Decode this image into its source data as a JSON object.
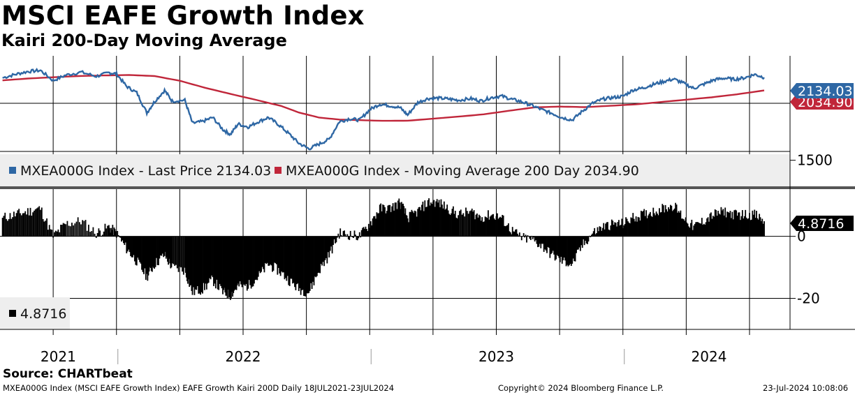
{
  "header": {
    "title": "MSCI EAFE Growth Index",
    "subtitle": "Kairi 200-Day Moving Average"
  },
  "chart_data": [
    {
      "type": "line",
      "panel": "upper",
      "x_unit": "year (decimal)",
      "series": [
        {
          "name": "MXEA000G Index - Last Price 2134.03",
          "color": "#2e67a4",
          "points": [
            [
              2021.55,
              2131
            ],
            [
              2021.6,
              2158
            ],
            [
              2021.65,
              2180
            ],
            [
              2021.7,
              2188
            ],
            [
              2021.75,
              2110
            ],
            [
              2021.8,
              2152
            ],
            [
              2021.86,
              2175
            ],
            [
              2021.92,
              2143
            ],
            [
              2021.97,
              2170
            ],
            [
              2022.0,
              2162
            ],
            [
              2022.04,
              2066
            ],
            [
              2022.08,
              2018
            ],
            [
              2022.12,
              1863
            ],
            [
              2022.15,
              1948
            ],
            [
              2022.19,
              2035
            ],
            [
              2022.22,
              1953
            ],
            [
              2022.27,
              1960
            ],
            [
              2022.3,
              1784
            ],
            [
              2022.34,
              1797
            ],
            [
              2022.38,
              1828
            ],
            [
              2022.42,
              1735
            ],
            [
              2022.45,
              1698
            ],
            [
              2022.48,
              1778
            ],
            [
              2022.52,
              1755
            ],
            [
              2022.56,
              1795
            ],
            [
              2022.6,
              1828
            ],
            [
              2022.64,
              1773
            ],
            [
              2022.68,
              1705
            ],
            [
              2022.72,
              1630
            ],
            [
              2022.76,
              1588
            ],
            [
              2022.8,
              1624
            ],
            [
              2022.84,
              1661
            ],
            [
              2022.88,
              1795
            ],
            [
              2022.92,
              1818
            ],
            [
              2022.96,
              1808
            ],
            [
              2023.0,
              1888
            ],
            [
              2023.04,
              1930
            ],
            [
              2023.08,
              1918
            ],
            [
              2023.12,
              1903
            ],
            [
              2023.15,
              1847
            ],
            [
              2023.19,
              1942
            ],
            [
              2023.23,
              1973
            ],
            [
              2023.27,
              1976
            ],
            [
              2023.31,
              1970
            ],
            [
              2023.35,
              1960
            ],
            [
              2023.4,
              1972
            ],
            [
              2023.44,
              1955
            ],
            [
              2023.48,
              1980
            ],
            [
              2023.52,
              1992
            ],
            [
              2023.56,
              1968
            ],
            [
              2023.6,
              1948
            ],
            [
              2023.64,
              1920
            ],
            [
              2023.68,
              1887
            ],
            [
              2023.72,
              1859
            ],
            [
              2023.76,
              1827
            ],
            [
              2023.8,
              1808
            ],
            [
              2023.84,
              1876
            ],
            [
              2023.88,
              1936
            ],
            [
              2023.92,
              1968
            ],
            [
              2023.96,
              1980
            ],
            [
              2024.0,
              1990
            ],
            [
              2024.04,
              2038
            ],
            [
              2024.08,
              2054
            ],
            [
              2024.12,
              2081
            ],
            [
              2024.16,
              2103
            ],
            [
              2024.2,
              2122
            ],
            [
              2024.24,
              2090
            ],
            [
              2024.28,
              2050
            ],
            [
              2024.32,
              2083
            ],
            [
              2024.36,
              2116
            ],
            [
              2024.4,
              2129
            ],
            [
              2024.44,
              2120
            ],
            [
              2024.48,
              2131
            ],
            [
              2024.52,
              2158
            ],
            [
              2024.558,
              2134.03
            ]
          ]
        },
        {
          "name": "MXEA000G Index - Moving Average 200 Day 2034.90",
          "color": "#c0263a",
          "points": [
            [
              2021.55,
              2112
            ],
            [
              2021.65,
              2126
            ],
            [
              2021.75,
              2136
            ],
            [
              2021.85,
              2145
            ],
            [
              2021.95,
              2150
            ],
            [
              2022.05,
              2153
            ],
            [
              2022.15,
              2145
            ],
            [
              2022.25,
              2109
            ],
            [
              2022.35,
              2055
            ],
            [
              2022.45,
              2008
            ],
            [
              2022.55,
              1963
            ],
            [
              2022.65,
              1916
            ],
            [
              2022.72,
              1866
            ],
            [
              2022.8,
              1827
            ],
            [
              2022.88,
              1812
            ],
            [
              2022.95,
              1808
            ],
            [
              2023.05,
              1802
            ],
            [
              2023.15,
              1803
            ],
            [
              2023.25,
              1818
            ],
            [
              2023.35,
              1834
            ],
            [
              2023.45,
              1852
            ],
            [
              2023.55,
              1879
            ],
            [
              2023.65,
              1905
            ],
            [
              2023.75,
              1911
            ],
            [
              2023.85,
              1907
            ],
            [
              2023.95,
              1917
            ],
            [
              2024.05,
              1928
            ],
            [
              2024.15,
              1946
            ],
            [
              2024.25,
              1964
            ],
            [
              2024.35,
              1982
            ],
            [
              2024.45,
              2005
            ],
            [
              2024.558,
              2034.9
            ]
          ]
        }
      ],
      "x_range": [
        2021.54,
        2024.66
      ],
      "y_range": [
        1300,
        2300
      ],
      "y_ticks": [
        1500
      ],
      "y_tick_labels": [
        "1500"
      ],
      "value_labels": [
        "2134.03",
        "2034.90"
      ],
      "grid": true,
      "legend_position": "bottom-left"
    },
    {
      "type": "bar",
      "panel": "lower",
      "x_unit": "year (decimal)",
      "series": [
        {
          "name": "4.8716",
          "color": "#000000",
          "points": [
            [
              2021.55,
              6
            ],
            [
              2021.6,
              7
            ],
            [
              2021.65,
              8
            ],
            [
              2021.7,
              9
            ],
            [
              2021.75,
              0
            ],
            [
              2021.8,
              4
            ],
            [
              2021.86,
              5
            ],
            [
              2021.92,
              1
            ],
            [
              2021.97,
              3
            ],
            [
              2022.0,
              1
            ],
            [
              2022.04,
              -4
            ],
            [
              2022.08,
              -8
            ],
            [
              2022.12,
              -13
            ],
            [
              2022.15,
              -9
            ],
            [
              2022.19,
              -6
            ],
            [
              2022.22,
              -10
            ],
            [
              2022.27,
              -11
            ],
            [
              2022.3,
              -18
            ],
            [
              2022.34,
              -17
            ],
            [
              2022.38,
              -14
            ],
            [
              2022.42,
              -18
            ],
            [
              2022.45,
              -19
            ],
            [
              2022.48,
              -16
            ],
            [
              2022.52,
              -16
            ],
            [
              2022.56,
              -13
            ],
            [
              2022.6,
              -9
            ],
            [
              2022.64,
              -11
            ],
            [
              2022.68,
              -14
            ],
            [
              2022.72,
              -17
            ],
            [
              2022.76,
              -18
            ],
            [
              2022.8,
              -11
            ],
            [
              2022.84,
              -6
            ],
            [
              2022.88,
              1
            ],
            [
              2022.92,
              0.5
            ],
            [
              2022.96,
              0
            ],
            [
              2023.0,
              4
            ],
            [
              2023.04,
              9
            ],
            [
              2023.08,
              9
            ],
            [
              2023.12,
              11
            ],
            [
              2023.15,
              6
            ],
            [
              2023.19,
              8
            ],
            [
              2023.23,
              11
            ],
            [
              2023.27,
              11
            ],
            [
              2023.31,
              9
            ],
            [
              2023.35,
              7
            ],
            [
              2023.4,
              8
            ],
            [
              2023.44,
              6
            ],
            [
              2023.48,
              7
            ],
            [
              2023.52,
              6
            ],
            [
              2023.56,
              2
            ],
            [
              2023.6,
              -0.5
            ],
            [
              2023.64,
              -1
            ],
            [
              2023.68,
              -3
            ],
            [
              2023.72,
              -6
            ],
            [
              2023.76,
              -8
            ],
            [
              2023.8,
              -9
            ],
            [
              2023.84,
              -3
            ],
            [
              2023.88,
              1
            ],
            [
              2023.92,
              3
            ],
            [
              2023.96,
              4
            ],
            [
              2024.0,
              4
            ],
            [
              2024.04,
              6
            ],
            [
              2024.08,
              7
            ],
            [
              2024.12,
              8
            ],
            [
              2024.16,
              9
            ],
            [
              2024.2,
              10
            ],
            [
              2024.24,
              6
            ],
            [
              2024.28,
              3
            ],
            [
              2024.32,
              5
            ],
            [
              2024.36,
              7
            ],
            [
              2024.4,
              8
            ],
            [
              2024.44,
              7
            ],
            [
              2024.48,
              7
            ],
            [
              2024.52,
              7
            ],
            [
              2024.558,
              4.8716
            ]
          ]
        }
      ],
      "x_range": [
        2021.54,
        2024.66
      ],
      "y_range": [
        -30,
        15
      ],
      "y_ticks": [
        0,
        -20
      ],
      "y_tick_labels": [
        "0",
        "-20"
      ],
      "value_labels": [
        "4.8716"
      ],
      "grid": true,
      "legend_position": "bottom-left"
    }
  ],
  "x_axis": {
    "years": [
      {
        "label": "2021",
        "center": 2021.77
      },
      {
        "label": "2022",
        "center": 2022.5
      },
      {
        "label": "2023",
        "center": 2023.5
      },
      {
        "label": "2024",
        "center": 2024.34
      }
    ],
    "boundaries": [
      2022.0,
      2023.0,
      2024.0
    ],
    "quarter_grid": [
      2021.75,
      2022.0,
      2022.25,
      2022.5,
      2022.75,
      2023.0,
      2023.25,
      2023.5,
      2023.75,
      2024.0,
      2024.25,
      2024.5
    ]
  },
  "colors": {
    "price": "#2e67a4",
    "moving_average": "#c0263a",
    "kairi": "#000000",
    "legend_bg": "#eeeeee"
  },
  "footer": {
    "source": "Source: CHARTbeat",
    "description": "MXEA000G Index (MSCI EAFE Growth Index) EAFE Growth Kairi 200D  Daily 18JUL2021-23JUL2024",
    "copyright": "Copyright© 2024 Bloomberg Finance L.P.",
    "timestamp": "23-Jul-2024 10:08:06"
  }
}
